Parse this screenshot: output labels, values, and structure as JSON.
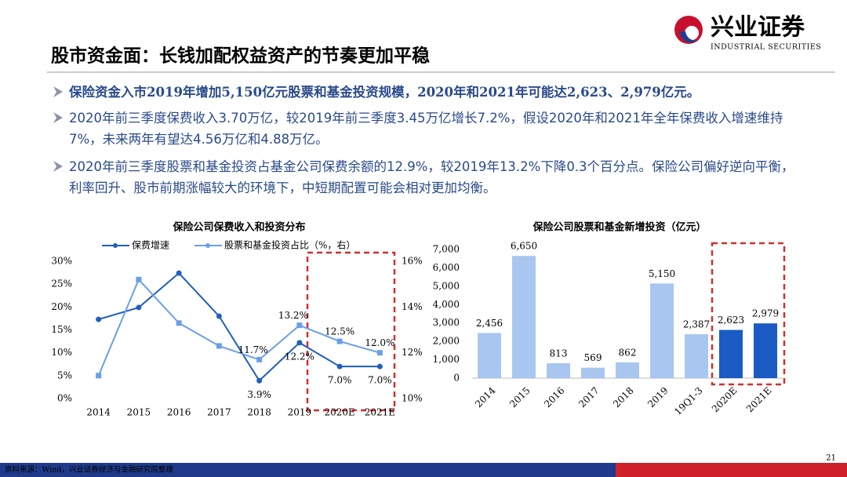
{
  "header": {
    "title": "股市资金面：长钱加配权益资产的节奏更加平稳",
    "logo_name": "兴业证券",
    "logo_en": "INDUSTRIAL SECURITIES"
  },
  "bullets": [
    "保险资金入市2019年增加5,150亿元股票和基金投资规模，2020年和2021年可能达2,623、2,979亿元。",
    "2020年前三季度保费收入3.70万亿，较2019年前三季度3.45万亿增长7.2%，假设2020年和2021年全年保费收入增速维持7%，未来两年有望达4.56万亿和4.88万亿。",
    "2020年前三季度股票和基金投资占基金公司保费余额的12.9%，较2019年13.2%下降0.3个百分点。保险公司偏好逆向平衡，利率回升、股市前期涨幅较大的环境下，中短期配置可能会相对更加均衡。"
  ],
  "chart_data": [
    {
      "type": "line",
      "title": "保险公司保费收入和投资分布",
      "categories": [
        "2014",
        "2015",
        "2016",
        "2017",
        "2018",
        "2019",
        "2020E",
        "2021E"
      ],
      "series": [
        {
          "name": "保费增速",
          "color": "#1f5fbf",
          "values": [
            17.3,
            19.9,
            27.4,
            18,
            3.9,
            12.2,
            7.0,
            7.0
          ],
          "value_labels": [
            null,
            null,
            null,
            null,
            "3.9%",
            "12.2%",
            "7.0%",
            "7.0%"
          ]
        },
        {
          "name": "股票和基金投资占比（%，右）",
          "color": "#6a9fe8",
          "axis": "y2",
          "values": [
            11.0,
            15.2,
            13.3,
            12.3,
            11.7,
            13.2,
            12.5,
            12.0
          ],
          "value_labels": [
            null,
            null,
            null,
            null,
            "11.7%",
            "13.2%",
            "12.5%",
            "12.0%"
          ]
        }
      ],
      "ylim": [
        0,
        30
      ],
      "yticks": [
        {
          "value": 0,
          "label": "0%"
        },
        {
          "value": 5,
          "label": "5%"
        },
        {
          "value": 10,
          "label": "10%"
        },
        {
          "value": 15,
          "label": "15%"
        },
        {
          "value": 20,
          "label": "20%"
        },
        {
          "value": 25,
          "label": "25%"
        },
        {
          "value": 30,
          "label": "30%"
        }
      ],
      "y2lim": [
        10,
        16
      ],
      "y2ticks": [
        {
          "value": 10,
          "label": "10%"
        },
        {
          "value": 12,
          "label": "12%"
        },
        {
          "value": 14,
          "label": "14%"
        },
        {
          "value": 16,
          "label": "16%"
        }
      ]
    },
    {
      "type": "bar",
      "title": "保险公司股票和基金新增投资（亿元）",
      "categories": [
        "2014",
        "2015",
        "2016",
        "2017",
        "2018",
        "2019",
        "19Q1-3",
        "2020E",
        "2021E"
      ],
      "values": [
        2456,
        6650,
        813,
        569,
        862,
        5150,
        2387,
        2623,
        2979
      ],
      "value_labels": [
        "2,456",
        "6,650",
        "813",
        "569",
        "862",
        "5,150",
        "2,387",
        "2,623",
        "2,979"
      ],
      "colors": [
        "#a9c6f0",
        "#a9c6f0",
        "#a9c6f0",
        "#a9c6f0",
        "#a9c6f0",
        "#a9c6f0",
        "#a9c6f0",
        "#1a5bc4",
        "#1a5bc4"
      ],
      "ylim": [
        0,
        7000
      ],
      "yticks": [
        0,
        {
          "value": 1000,
          "label": "1,000"
        },
        {
          "value": 2000,
          "label": "2,000"
        },
        {
          "value": 3000,
          "label": "3,000"
        },
        {
          "value": 4000,
          "label": "4,000"
        },
        {
          "value": 5000,
          "label": "5,000"
        },
        {
          "value": 6000,
          "label": "6,000"
        },
        {
          "value": 7000,
          "label": "7,000"
        }
      ]
    }
  ],
  "footer": {
    "source": "资料来源：Wind，兴业证券经济与金融研究院整理",
    "page": "21"
  }
}
